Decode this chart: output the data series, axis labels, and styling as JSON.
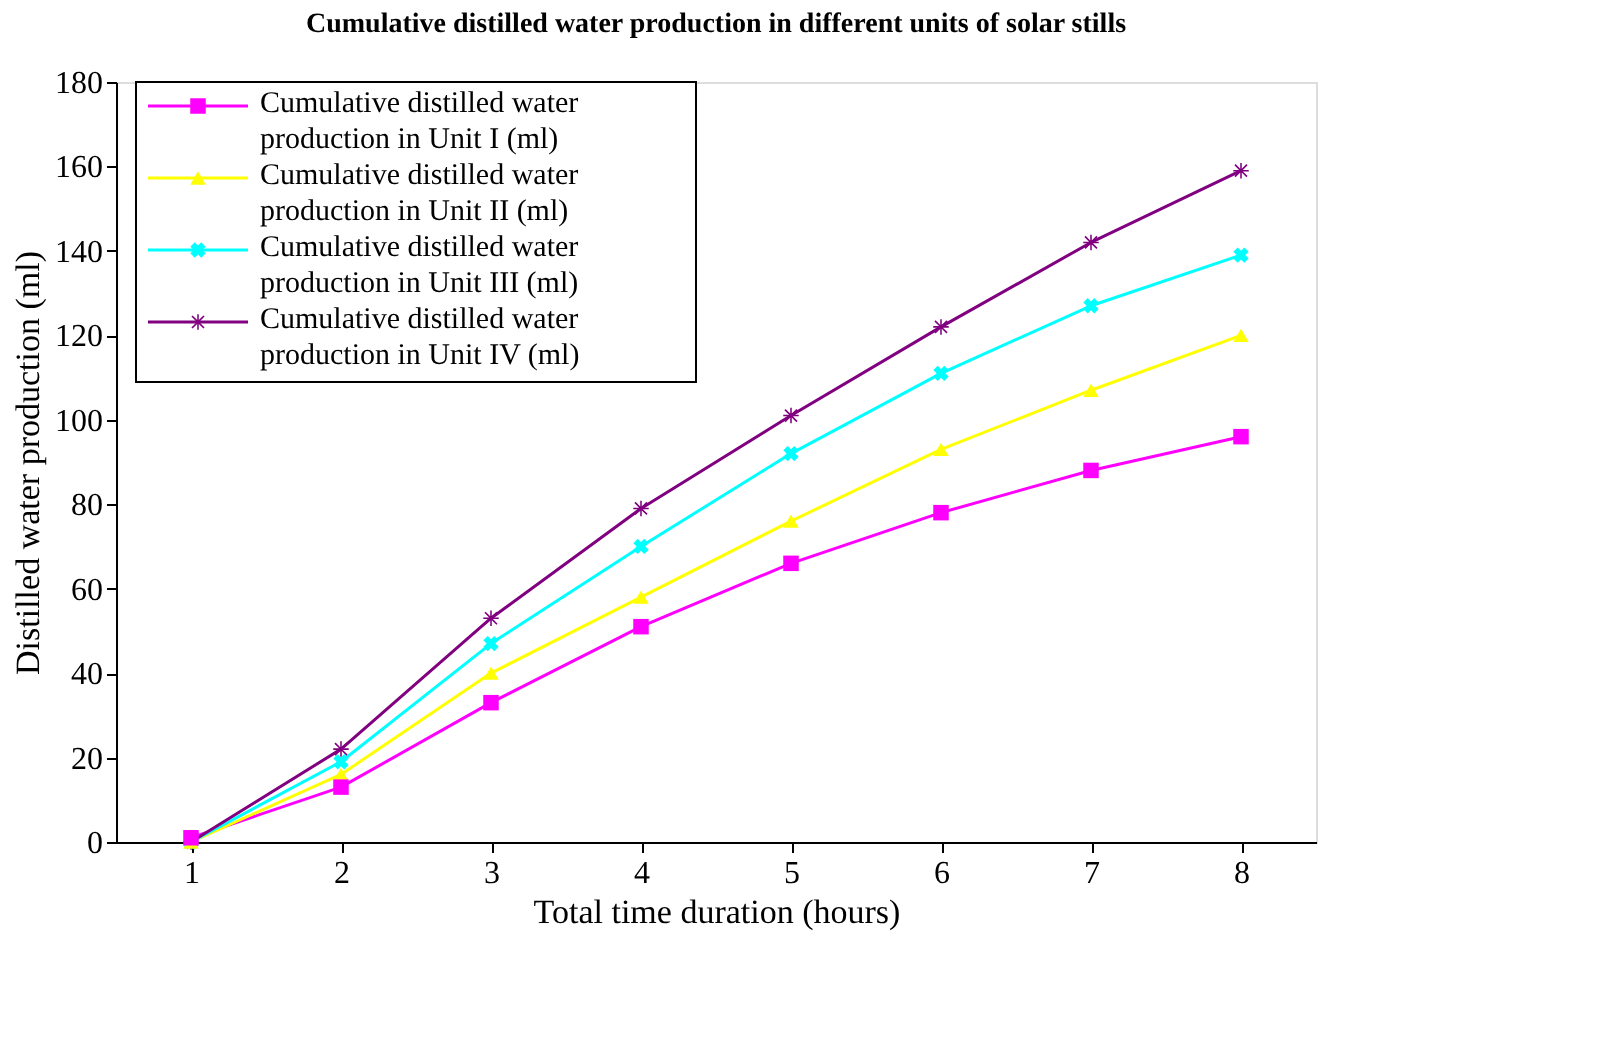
{
  "chart_data": {
    "type": "line",
    "title": "Cumulative distilled water production in different units of solar stills",
    "xlabel": "Total time duration (hours)",
    "ylabel": "Distilled water production (ml)",
    "categories": [
      "1",
      "2",
      "3",
      "4",
      "5",
      "6",
      "7",
      "8"
    ],
    "ylim": [
      0,
      180
    ],
    "yticks": [
      0,
      20,
      40,
      60,
      80,
      100,
      120,
      140,
      160,
      180
    ],
    "grid": false,
    "legend": "top left",
    "series": [
      {
        "name": "Cumulative distilled water production in Unit I (ml)",
        "color": "#ff00ff",
        "marker": "square",
        "values": [
          1,
          13,
          33,
          51,
          66,
          78,
          88,
          96
        ]
      },
      {
        "name": "Cumulative distilled water production in Unit II (ml)",
        "color": "#ffff00",
        "marker": "triangle",
        "values": [
          0,
          16,
          40,
          58,
          76,
          93,
          107,
          120
        ]
      },
      {
        "name": "Cumulative distilled water production in Unit III (ml)",
        "color": "#00ffff",
        "marker": "cross",
        "values": [
          0,
          19,
          47,
          70,
          92,
          111,
          127,
          139
        ]
      },
      {
        "name": "Cumulative distilled water production in Unit IV (ml)",
        "color": "#800080",
        "marker": "star",
        "values": [
          0,
          22,
          53,
          79,
          101,
          122,
          142,
          159
        ]
      }
    ]
  }
}
